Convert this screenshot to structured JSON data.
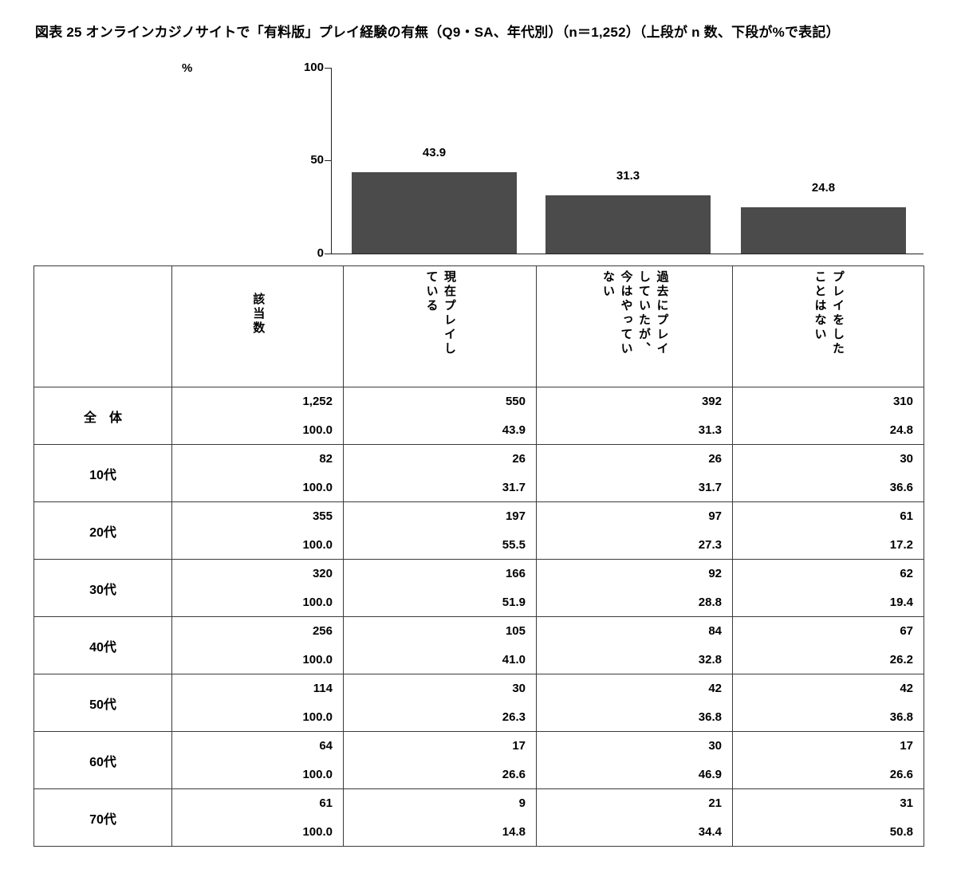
{
  "title": "図表 25 オンラインカジノサイトで「有料版」プレイ経験の有無（Q9・SA、年代別）（n＝1,252）（上段が n 数、下段が%で表記）",
  "chart": {
    "percent_label": "%",
    "yticks": [
      "100",
      "50",
      "0"
    ]
  },
  "chart_data": {
    "type": "bar",
    "categories": [
      "現在プレイしている",
      "過去にプレイしていたが、今はやっていない",
      "プレイをしたことはない"
    ],
    "values": [
      43.9,
      31.3,
      24.8
    ],
    "value_labels": [
      "43.9",
      "31.3",
      "24.8"
    ],
    "ylabel": "%",
    "ylim": [
      0,
      100
    ],
    "yticks": [
      0,
      50,
      100
    ],
    "grid": false,
    "legend": false,
    "bar_color": "#4b4b4b"
  },
  "table": {
    "corner_label": "",
    "col_headers": [
      "該当数",
      "現在プレイしている",
      "過去にプレイしていたが、今はやっていない",
      "プレイをしたことはない"
    ],
    "rows": [
      {
        "label": "全　体",
        "n": [
          "1,252",
          "550",
          "392",
          "310"
        ],
        "pct": [
          "100.0",
          "43.9",
          "31.3",
          "24.8"
        ]
      },
      {
        "label": "10代",
        "n": [
          "82",
          "26",
          "26",
          "30"
        ],
        "pct": [
          "100.0",
          "31.7",
          "31.7",
          "36.6"
        ]
      },
      {
        "label": "20代",
        "n": [
          "355",
          "197",
          "97",
          "61"
        ],
        "pct": [
          "100.0",
          "55.5",
          "27.3",
          "17.2"
        ]
      },
      {
        "label": "30代",
        "n": [
          "320",
          "166",
          "92",
          "62"
        ],
        "pct": [
          "100.0",
          "51.9",
          "28.8",
          "19.4"
        ]
      },
      {
        "label": "40代",
        "n": [
          "256",
          "105",
          "84",
          "67"
        ],
        "pct": [
          "100.0",
          "41.0",
          "32.8",
          "26.2"
        ]
      },
      {
        "label": "50代",
        "n": [
          "114",
          "30",
          "42",
          "42"
        ],
        "pct": [
          "100.0",
          "26.3",
          "36.8",
          "36.8"
        ]
      },
      {
        "label": "60代",
        "n": [
          "64",
          "17",
          "30",
          "17"
        ],
        "pct": [
          "100.0",
          "26.6",
          "46.9",
          "26.6"
        ]
      },
      {
        "label": "70代",
        "n": [
          "61",
          "9",
          "21",
          "31"
        ],
        "pct": [
          "100.0",
          "14.8",
          "34.4",
          "50.8"
        ]
      }
    ]
  }
}
